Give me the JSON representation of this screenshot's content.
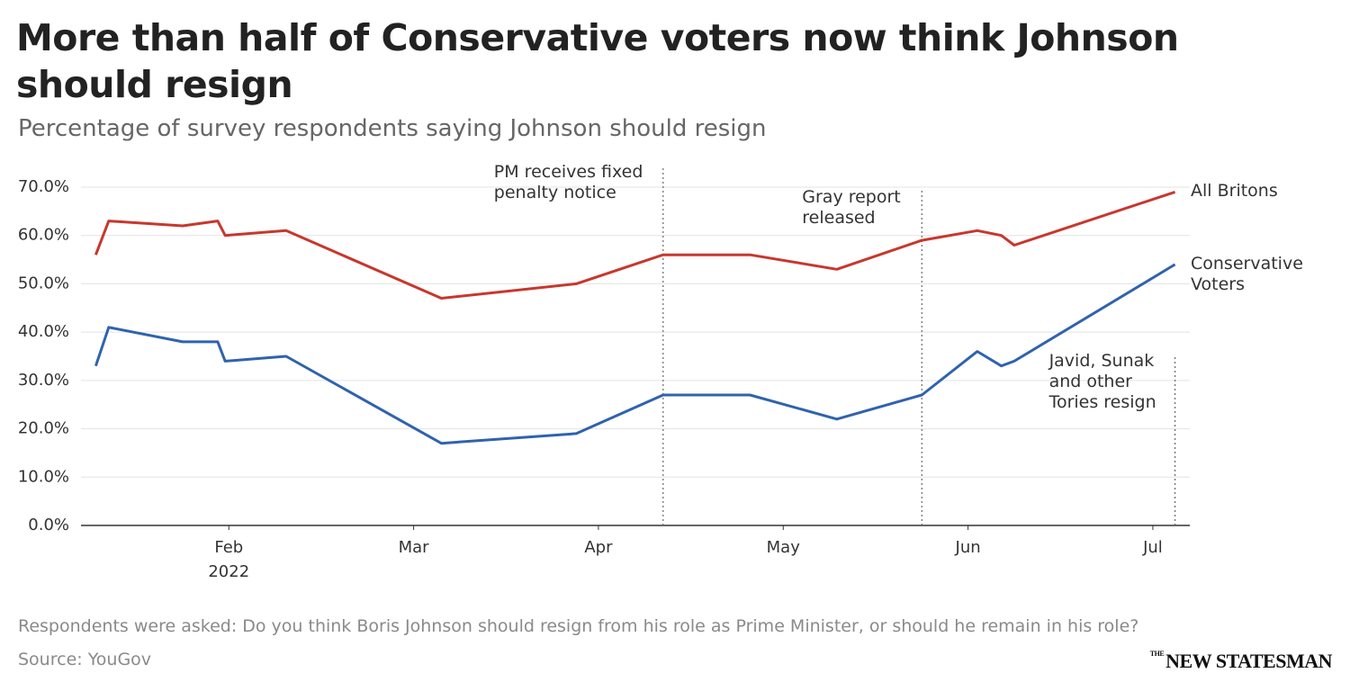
{
  "chart_data": {
    "type": "line",
    "title": "More than half of Conservative voters now think Johnson should resign",
    "subtitle": "Percentage of survey respondents saying Johnson should resign",
    "x": [
      1.28,
      1.35,
      1.75,
      1.94,
      1.98,
      2.31,
      3.15,
      3.88,
      4.35,
      4.82,
      5.29,
      5.75,
      6.05,
      6.18,
      6.25,
      7.12
    ],
    "series": [
      {
        "name": "All Britons",
        "color": "#c8372d",
        "values": [
          56,
          63,
          62,
          63,
          60,
          61,
          47,
          50,
          56,
          56,
          53,
          59,
          61,
          60,
          58,
          69
        ]
      },
      {
        "name": "Conservative Voters",
        "color": "#2f63ad",
        "values": [
          33,
          41,
          38,
          38,
          34,
          35,
          17,
          19,
          27,
          27,
          22,
          27,
          36,
          33,
          34,
          54
        ]
      }
    ],
    "xlim": [
      1.2,
      7.2
    ],
    "xticks": [
      {
        "value": 2,
        "label": "Feb"
      },
      {
        "value": 3,
        "label": "Mar"
      },
      {
        "value": 4,
        "label": "Apr"
      },
      {
        "value": 5,
        "label": "May"
      },
      {
        "value": 6,
        "label": "Jun"
      },
      {
        "value": 7,
        "label": "Jul"
      }
    ],
    "x_year_label": "2022",
    "ylim": [
      0,
      70
    ],
    "yticks": [
      {
        "value": 0,
        "label": "0.0%"
      },
      {
        "value": 10,
        "label": "10.0%"
      },
      {
        "value": 20,
        "label": "20.0%"
      },
      {
        "value": 30,
        "label": "30.0%"
      },
      {
        "value": 40,
        "label": "40.0%"
      },
      {
        "value": 50,
        "label": "50.0%"
      },
      {
        "value": 60,
        "label": "60.0%"
      },
      {
        "value": 70,
        "label": "70.0%"
      }
    ],
    "grid": true,
    "annotations": [
      {
        "x": 4.35,
        "text": "PM receives fixed penalty notice"
      },
      {
        "x": 5.75,
        "text": "Gray report released"
      },
      {
        "x": 7.12,
        "text": "Javid, Sunak and other Tories resign"
      }
    ],
    "note": "Respondents were asked: Do you think Boris Johnson should resign from his role as Prime Minister, or should he remain in his role?",
    "source": "Source: YouGov",
    "publisher": {
      "prefix": "THE",
      "name": "NEW STATESMAN"
    }
  }
}
